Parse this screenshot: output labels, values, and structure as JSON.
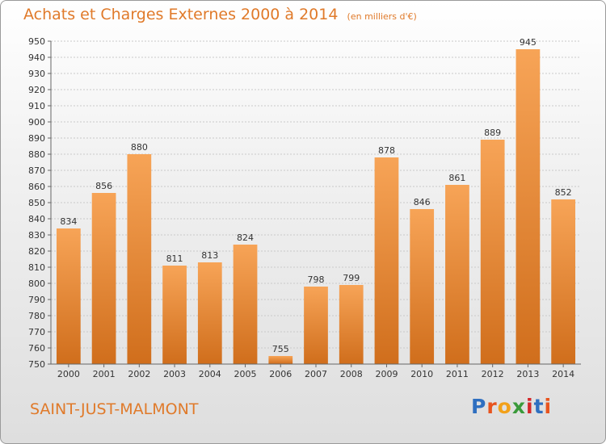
{
  "title": "Achats et Charges Externes 2000 à 2014",
  "unit": "(en milliers d'€)",
  "commune": "SAINT-JUST-MALMONT",
  "logo": "Proxiti",
  "colors": {
    "title": "#e07a2a",
    "bar_top": "#f7a457",
    "bar_bottom": "#d06e1c"
  },
  "chart_data": {
    "type": "bar",
    "title": "Achats et Charges Externes 2000 à 2014",
    "subtitle": "(en milliers d'€)",
    "xlabel": "",
    "ylabel": "",
    "categories": [
      "2000",
      "2001",
      "2002",
      "2003",
      "2004",
      "2005",
      "2006",
      "2007",
      "2008",
      "2009",
      "2010",
      "2011",
      "2012",
      "2013",
      "2014"
    ],
    "values": [
      834,
      856,
      880,
      811,
      813,
      824,
      755,
      798,
      799,
      878,
      846,
      861,
      889,
      945,
      852
    ],
    "ylim": [
      750,
      950
    ],
    "yticks": [
      750,
      760,
      770,
      780,
      790,
      800,
      810,
      820,
      830,
      840,
      850,
      860,
      870,
      880,
      890,
      900,
      910,
      920,
      930,
      940,
      950
    ],
    "grid": true,
    "legend": "none"
  }
}
